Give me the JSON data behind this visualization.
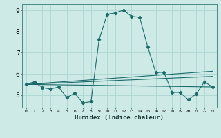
{
  "xlabel": "Humidex (Indice chaleur)",
  "xlim": [
    -0.5,
    23.5
  ],
  "ylim": [
    4.4,
    9.3
  ],
  "yticks": [
    5,
    6,
    7,
    8,
    9
  ],
  "xticks": [
    0,
    1,
    2,
    3,
    4,
    5,
    6,
    7,
    8,
    9,
    10,
    11,
    12,
    13,
    14,
    15,
    16,
    17,
    18,
    19,
    20,
    21,
    22,
    23
  ],
  "bg_color": "#ceeae6",
  "grid_color": "#b0d8d4",
  "line_color": "#1a6b6b",
  "main_line": {
    "x": [
      0,
      1,
      2,
      3,
      4,
      5,
      6,
      7,
      8,
      9,
      10,
      11,
      12,
      13,
      14,
      15,
      16,
      17,
      18,
      19,
      20,
      21,
      22,
      23
    ],
    "y": [
      5.5,
      5.62,
      5.35,
      5.28,
      5.38,
      4.88,
      5.08,
      4.62,
      4.68,
      7.62,
      8.82,
      8.88,
      9.02,
      8.72,
      8.68,
      7.28,
      6.05,
      6.08,
      5.12,
      5.12,
      4.78,
      5.05,
      5.62,
      5.38
    ]
  },
  "straight_lines": [
    {
      "x0": 0,
      "y0": 5.5,
      "x1": 23,
      "y1": 5.38
    },
    {
      "x0": 0,
      "y0": 5.5,
      "x1": 23,
      "y1": 5.88
    },
    {
      "x0": 0,
      "y0": 5.5,
      "x1": 23,
      "y1": 6.12
    }
  ]
}
